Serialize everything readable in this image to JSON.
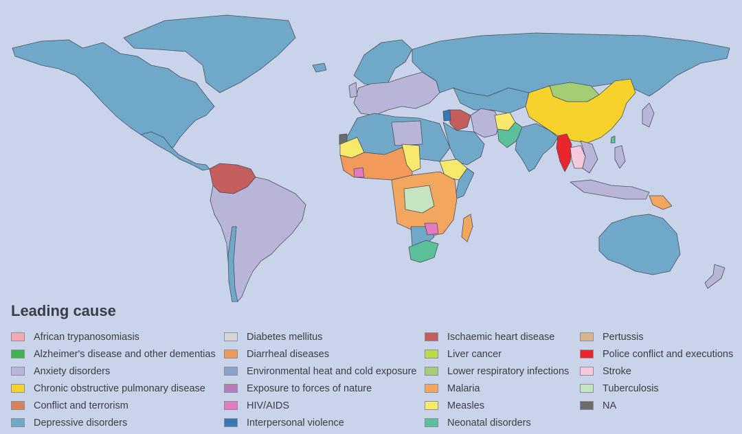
{
  "legend": {
    "title": "Leading cause",
    "items": [
      {
        "label": "African trypanosomiasis",
        "color": "#f2a9b4"
      },
      {
        "label": "Alzheimer's disease and other dementias",
        "color": "#3fb34f"
      },
      {
        "label": "Anxiety disorders",
        "color": "#b9b5d8"
      },
      {
        "label": "Chronic obstructive pulmonary disease",
        "color": "#f7d12c"
      },
      {
        "label": "Conflict and terrorism",
        "color": "#d9805a"
      },
      {
        "label": "Depressive disorders",
        "color": "#6fa8c8"
      },
      {
        "label": "Diabetes mellitus",
        "color": "#d6d6d6"
      },
      {
        "label": "Diarrheal diseases",
        "color": "#f19a5b"
      },
      {
        "label": "Environmental heat and cold exposure",
        "color": "#8aa1c9"
      },
      {
        "label": "Exposure to forces of nature",
        "color": "#b57db8"
      },
      {
        "label": "HIV/AIDS",
        "color": "#e27bc0"
      },
      {
        "label": "Interpersonal violence",
        "color": "#3778b5"
      },
      {
        "label": "Ischaemic heart disease",
        "color": "#c45e5c"
      },
      {
        "label": "Liver cancer",
        "color": "#bcd94c"
      },
      {
        "label": "Lower respiratory infections",
        "color": "#a5cd74"
      },
      {
        "label": "Malaria",
        "color": "#f2a65e"
      },
      {
        "label": "Measles",
        "color": "#f6e96b"
      },
      {
        "label": "Neonatal disorders",
        "color": "#5bbf9a"
      },
      {
        "label": "Pertussis",
        "color": "#d8b48a"
      },
      {
        "label": "Police conflict and executions",
        "color": "#e8262c"
      },
      {
        "label": "Stroke",
        "color": "#f6c8dd"
      },
      {
        "label": "Tuberculosis",
        "color": "#c6e3c2"
      },
      {
        "label": "NA",
        "color": "#6b6b6b"
      }
    ]
  },
  "map": {
    "ocean_color": "#c9d3ea",
    "regions": [
      {
        "name": "north-america",
        "cause": "Depressive disorders"
      },
      {
        "name": "greenland",
        "cause": "Depressive disorders"
      },
      {
        "name": "russia",
        "cause": "Depressive disorders"
      },
      {
        "name": "scandinavia",
        "cause": "Depressive disorders"
      },
      {
        "name": "europe",
        "cause": "Anxiety disorders"
      },
      {
        "name": "south-america",
        "cause": "Anxiety disorders"
      },
      {
        "name": "venezuela",
        "cause": "Ischaemic heart disease"
      },
      {
        "name": "china",
        "cause": "Chronic obstructive pulmonary disease"
      },
      {
        "name": "mongolia",
        "cause": "Lower respiratory infections"
      },
      {
        "name": "myanmar",
        "cause": "Police conflict and executions"
      },
      {
        "name": "india",
        "cause": "Depressive disorders"
      },
      {
        "name": "australia",
        "cause": "Depressive disorders"
      },
      {
        "name": "west-africa",
        "cause": "Diarrheal diseases"
      },
      {
        "name": "central-africa",
        "cause": "Malaria"
      },
      {
        "name": "zambia",
        "cause": "Tuberculosis"
      },
      {
        "name": "south-africa",
        "cause": "Neonatal disorders"
      },
      {
        "name": "madagascar",
        "cause": "Malaria"
      },
      {
        "name": "afghanistan",
        "cause": "Measles"
      },
      {
        "name": "pakistan",
        "cause": "Neonatal disorders"
      },
      {
        "name": "syria",
        "cause": "Interpersonal violence"
      },
      {
        "name": "iraq",
        "cause": "Ischaemic heart disease"
      },
      {
        "name": "western-sahara",
        "cause": "NA"
      },
      {
        "name": "thailand",
        "cause": "Stroke"
      },
      {
        "name": "papua-new-guinea",
        "cause": "Malaria"
      }
    ]
  }
}
